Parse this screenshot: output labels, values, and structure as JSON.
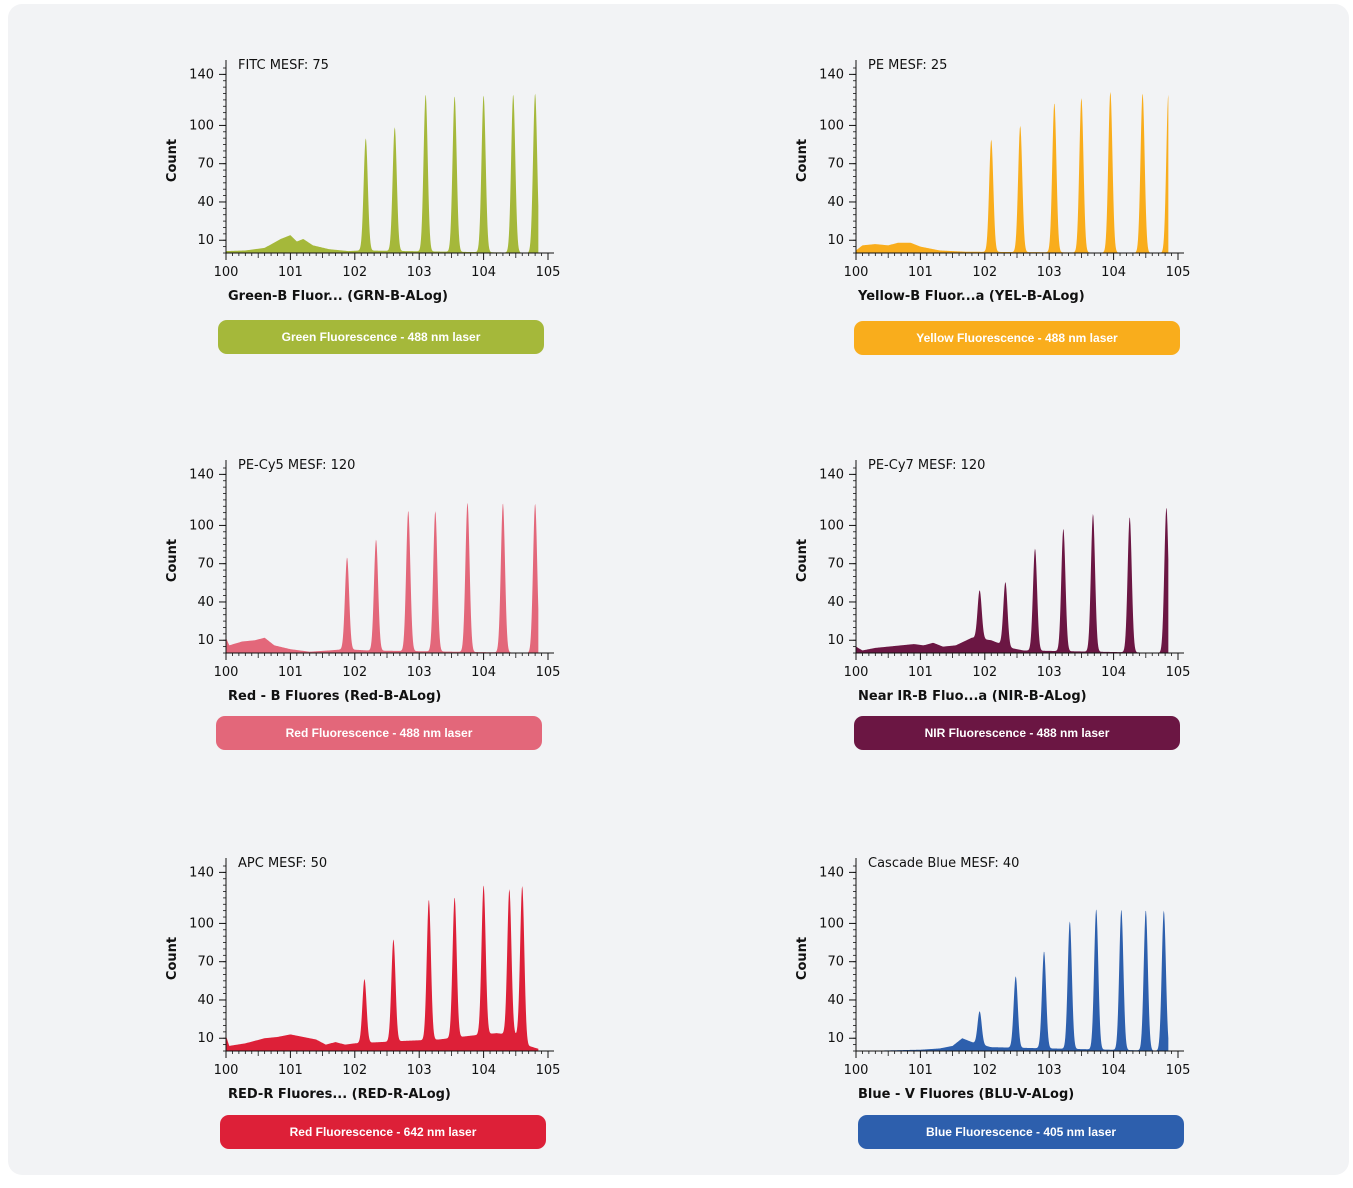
{
  "colors": {
    "green": "#a5b83a",
    "yellow": "#f9ad1c",
    "red_b": "#e3677a",
    "nir": "#6b1643",
    "red_r": "#dd2038",
    "blue": "#2d5fad"
  },
  "chart_data": [
    {
      "type": "area",
      "annotation": "FITC MESF: 75",
      "ylabel": "Count",
      "xlabel": "Green-B Fluor... (GRN-B-ALog)",
      "yticks": [
        "140",
        "100",
        "70",
        "40",
        "10"
      ],
      "xticks": [
        "100",
        "101",
        "102",
        "103",
        "104",
        "105"
      ],
      "xlim": [
        0,
        5
      ],
      "ylim": [
        0,
        145
      ],
      "color": "#a5b83a",
      "background": [
        [
          0.0,
          1.5
        ],
        [
          0.3,
          2
        ],
        [
          0.6,
          4
        ],
        [
          0.85,
          11
        ],
        [
          1.0,
          14
        ],
        [
          1.1,
          9
        ],
        [
          1.2,
          11
        ],
        [
          1.35,
          6
        ],
        [
          1.6,
          3
        ],
        [
          1.9,
          1.5
        ],
        [
          2.1,
          2
        ],
        [
          4.9,
          0
        ]
      ],
      "peaks": [
        [
          2.17,
          88
        ],
        [
          2.62,
          97
        ],
        [
          3.1,
          123
        ],
        [
          3.55,
          122
        ],
        [
          4.0,
          123
        ],
        [
          4.46,
          124
        ],
        [
          4.8,
          125
        ]
      ],
      "label": "Green Fluorescence - 488 nm laser"
    },
    {
      "type": "area",
      "annotation": "PE MESF: 25",
      "ylabel": "Count",
      "xlabel": "Yellow-B Fluor...a (YEL-B-ALog)",
      "yticks": [
        "140",
        "100",
        "70",
        "40",
        "10"
      ],
      "xticks": [
        "100",
        "101",
        "102",
        "103",
        "104",
        "105"
      ],
      "xlim": [
        0,
        5
      ],
      "ylim": [
        0,
        145
      ],
      "color": "#f9ad1c",
      "background": [
        [
          0.0,
          2
        ],
        [
          0.1,
          6
        ],
        [
          0.3,
          7
        ],
        [
          0.5,
          6
        ],
        [
          0.65,
          8
        ],
        [
          0.85,
          8
        ],
        [
          1.0,
          5
        ],
        [
          1.3,
          2
        ],
        [
          1.7,
          1
        ],
        [
          4.9,
          0
        ]
      ],
      "peaks": [
        [
          2.1,
          88
        ],
        [
          2.55,
          99
        ],
        [
          3.08,
          117
        ],
        [
          3.5,
          121
        ],
        [
          3.95,
          126
        ],
        [
          4.45,
          125
        ],
        [
          4.85,
          124
        ]
      ],
      "label": "Yellow Fluorescence - 488 nm laser"
    },
    {
      "type": "area",
      "annotation": "PE-Cy5 MESF: 120",
      "ylabel": "Count",
      "xlabel": "Red - B Fluores (Red-B-ALog)",
      "yticks": [
        "140",
        "100",
        "70",
        "40",
        "10"
      ],
      "xticks": [
        "100",
        "101",
        "102",
        "103",
        "104",
        "105"
      ],
      "xlim": [
        0,
        5
      ],
      "ylim": [
        0,
        145
      ],
      "color": "#e3677a",
      "background": [
        [
          0.0,
          12
        ],
        [
          0.05,
          6
        ],
        [
          0.25,
          9
        ],
        [
          0.45,
          10
        ],
        [
          0.6,
          12
        ],
        [
          0.75,
          6
        ],
        [
          1.0,
          3
        ],
        [
          1.3,
          1
        ],
        [
          1.6,
          2
        ],
        [
          1.85,
          3
        ],
        [
          2.2,
          2
        ],
        [
          4.9,
          0
        ]
      ],
      "peaks": [
        [
          1.88,
          72
        ],
        [
          2.33,
          87
        ],
        [
          2.83,
          110
        ],
        [
          3.25,
          110
        ],
        [
          3.75,
          117
        ],
        [
          4.3,
          117
        ],
        [
          4.8,
          117
        ]
      ],
      "label": "Red Fluorescence - 488 nm laser"
    },
    {
      "type": "area",
      "annotation": "PE-Cy7 MESF: 120",
      "ylabel": "Count",
      "xlabel": "Near IR-B Fluo...a (NIR-B-ALog)",
      "yticks": [
        "140",
        "100",
        "70",
        "40",
        "10"
      ],
      "xticks": [
        "100",
        "101",
        "102",
        "103",
        "104",
        "105"
      ],
      "xlim": [
        0,
        5
      ],
      "ylim": [
        0,
        145
      ],
      "color": "#6b1643",
      "background": [
        [
          0.0,
          5
        ],
        [
          0.1,
          2
        ],
        [
          0.3,
          4
        ],
        [
          0.5,
          5
        ],
        [
          0.7,
          6
        ],
        [
          0.9,
          7
        ],
        [
          1.05,
          6
        ],
        [
          1.2,
          8
        ],
        [
          1.35,
          5
        ],
        [
          1.55,
          6
        ],
        [
          1.8,
          12
        ],
        [
          2.1,
          10
        ],
        [
          2.4,
          4
        ],
        [
          2.6,
          2
        ],
        [
          4.9,
          0
        ]
      ],
      "peaks": [
        [
          1.92,
          38
        ],
        [
          2.32,
          50
        ],
        [
          2.78,
          80
        ],
        [
          3.22,
          96
        ],
        [
          3.68,
          108
        ],
        [
          4.25,
          106
        ],
        [
          4.82,
          114
        ]
      ],
      "label": "NIR Fluorescence - 488 nm laser"
    },
    {
      "type": "area",
      "annotation": "APC MESF: 50",
      "ylabel": "Count",
      "xlabel": "RED-R Fluores... (RED-R-ALog)",
      "yticks": [
        "140",
        "100",
        "70",
        "40",
        "10"
      ],
      "xticks": [
        "100",
        "101",
        "102",
        "103",
        "104",
        "105"
      ],
      "xlim": [
        0,
        5
      ],
      "ylim": [
        0,
        145
      ],
      "color": "#dd2038",
      "background": [
        [
          0.0,
          12
        ],
        [
          0.05,
          4
        ],
        [
          0.3,
          6
        ],
        [
          0.6,
          10
        ],
        [
          0.8,
          11
        ],
        [
          1.0,
          13
        ],
        [
          1.2,
          11
        ],
        [
          1.4,
          9
        ],
        [
          1.55,
          5
        ],
        [
          1.7,
          7
        ],
        [
          1.85,
          5
        ],
        [
          2.0,
          6
        ],
        [
          2.4,
          7
        ],
        [
          2.8,
          8
        ],
        [
          3.3,
          9
        ],
        [
          3.8,
          12
        ],
        [
          4.2,
          14
        ],
        [
          4.55,
          12
        ],
        [
          4.7,
          4
        ],
        [
          4.9,
          1
        ]
      ],
      "peaks": [
        [
          2.15,
          50
        ],
        [
          2.6,
          80
        ],
        [
          3.15,
          110
        ],
        [
          3.55,
          110
        ],
        [
          4.0,
          117
        ],
        [
          4.4,
          114
        ],
        [
          4.6,
          120
        ]
      ],
      "label": "Red Fluorescence - 642 nm laser"
    },
    {
      "type": "area",
      "annotation": "Cascade Blue MESF: 40",
      "ylabel": "Count",
      "xlabel": "Blue - V Fluores (BLU-V-ALog)",
      "yticks": [
        "140",
        "100",
        "70",
        "40",
        "10"
      ],
      "xticks": [
        "100",
        "101",
        "102",
        "103",
        "104",
        "105"
      ],
      "xlim": [
        0,
        5
      ],
      "ylim": [
        0,
        145
      ],
      "color": "#2d5fad",
      "background": [
        [
          0.0,
          0
        ],
        [
          1.0,
          1
        ],
        [
          1.3,
          2
        ],
        [
          1.5,
          4
        ],
        [
          1.65,
          10
        ],
        [
          1.85,
          6
        ],
        [
          2.1,
          3
        ],
        [
          4.9,
          0
        ]
      ],
      "peaks": [
        [
          1.92,
          26
        ],
        [
          2.48,
          56
        ],
        [
          2.92,
          76
        ],
        [
          3.32,
          100
        ],
        [
          3.73,
          110
        ],
        [
          4.12,
          110
        ],
        [
          4.5,
          110
        ],
        [
          4.78,
          110
        ]
      ],
      "label": "Blue Fluorescence - 405 nm laser"
    }
  ]
}
